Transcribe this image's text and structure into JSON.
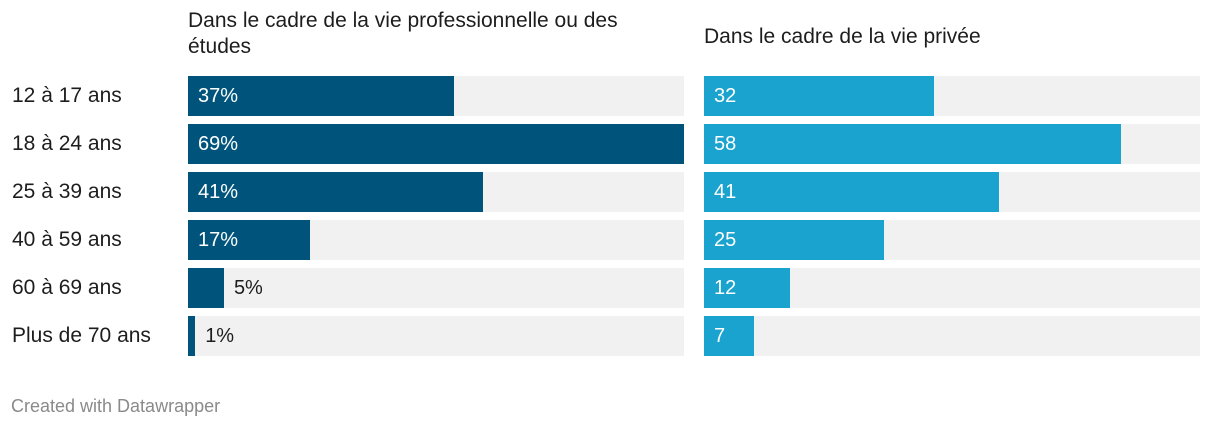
{
  "chart_data": {
    "type": "bar",
    "orientation": "horizontal",
    "categories": [
      "12 à 17 ans",
      "18 à 24 ans",
      "25 à 39 ans",
      "40 à 59 ans",
      "60 à 69 ans",
      "Plus de 70 ans"
    ],
    "series": [
      {
        "name": "Dans le cadre de la vie professionnelle ou des études",
        "values": [
          37,
          69,
          41,
          17,
          5,
          1
        ],
        "value_labels": [
          "37%",
          "69%",
          "41%",
          "17%",
          "5%",
          "1%"
        ],
        "color": "#00547c",
        "xlim": [
          0,
          69
        ]
      },
      {
        "name": "Dans le cadre de la vie privée",
        "values": [
          32,
          58,
          41,
          25,
          12,
          7
        ],
        "value_labels": [
          "32",
          "58",
          "41",
          "25",
          "12",
          "7"
        ],
        "color": "#1aa3cf",
        "xlim": [
          0,
          69
        ]
      }
    ],
    "background_color": "#f1f1f1",
    "grid": false,
    "legend": "none"
  },
  "footer": {
    "credit": "Created with Datawrapper"
  }
}
